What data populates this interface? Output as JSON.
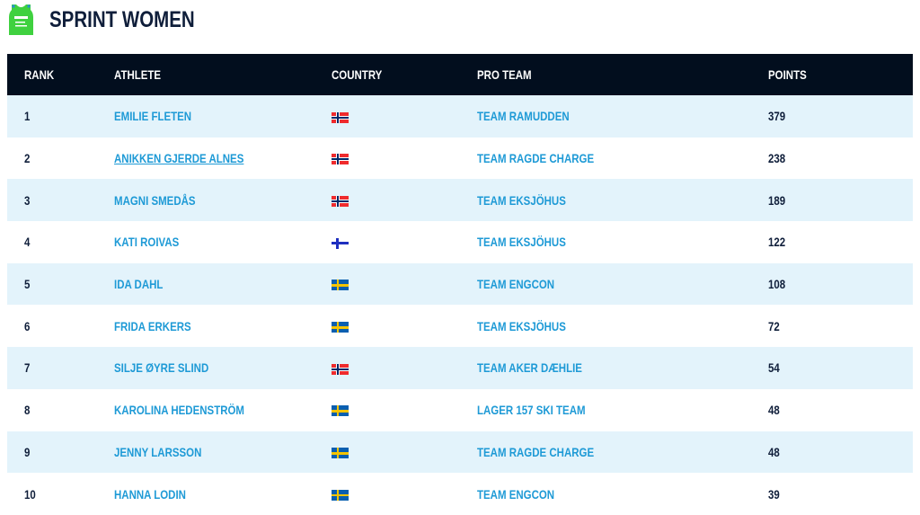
{
  "page": {
    "title": "SPRINT WOMEN",
    "logo_icon": "green-sprint-bib-icon",
    "logo_text": "SPRINT"
  },
  "colors": {
    "header_bg": "#020e1e",
    "link": "#1e9ad6",
    "stripe": "#e3f3fb",
    "logo_green": "#3fd13f"
  },
  "table": {
    "headers": {
      "rank": "RANK",
      "athlete": "ATHLETE",
      "country": "COUNTRY",
      "team": "PRO TEAM",
      "points": "POINTS"
    },
    "rows": [
      {
        "rank": "1",
        "athlete": "EMILIE FLETEN",
        "country": "NOR",
        "team": "TEAM RAMUDDEN",
        "points": "379"
      },
      {
        "rank": "2",
        "athlete": "ANIKKEN GJERDE ALNES",
        "country": "NOR",
        "team": "TEAM RAGDE CHARGE",
        "points": "238",
        "hovered": true
      },
      {
        "rank": "3",
        "athlete": "MAGNI SMEDÅS",
        "country": "NOR",
        "team": "TEAM EKSJÖHUS",
        "points": "189"
      },
      {
        "rank": "4",
        "athlete": "KATI ROIVAS",
        "country": "FIN",
        "team": "TEAM EKSJÖHUS",
        "points": "122"
      },
      {
        "rank": "5",
        "athlete": "IDA DAHL",
        "country": "SWE",
        "team": "TEAM ENGCON",
        "points": "108"
      },
      {
        "rank": "6",
        "athlete": "FRIDA ERKERS",
        "country": "SWE",
        "team": "TEAM EKSJÖHUS",
        "points": "72"
      },
      {
        "rank": "7",
        "athlete": "SILJE ØYRE SLIND",
        "country": "NOR",
        "team": "TEAM AKER DÆHLIE",
        "points": "54"
      },
      {
        "rank": "8",
        "athlete": "KAROLINA HEDENSTRÖM",
        "country": "SWE",
        "team": "LAGER 157 SKI TEAM",
        "points": "48"
      },
      {
        "rank": "9",
        "athlete": "JENNY LARSSON",
        "country": "SWE",
        "team": "TEAM RAGDE CHARGE",
        "points": "48"
      },
      {
        "rank": "10",
        "athlete": "HANNA LODIN",
        "country": "SWE",
        "team": "TEAM ENGCON",
        "points": "39"
      }
    ]
  }
}
